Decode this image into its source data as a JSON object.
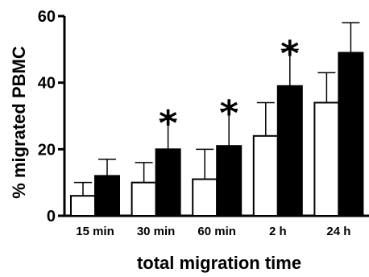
{
  "chart_data": {
    "type": "bar",
    "title": "",
    "xlabel": "total migration time",
    "ylabel": "% migrated PBMC",
    "ylim": [
      0,
      60
    ],
    "yticks": [
      "0",
      "20",
      "40",
      "60"
    ],
    "categories": [
      "15 min",
      "30 min",
      "60 min",
      "2 h",
      "24 h"
    ],
    "series": [
      {
        "fill": "#ffffff",
        "values": [
          6,
          10,
          11,
          24,
          34
        ],
        "errors": [
          4,
          6,
          9,
          10,
          9
        ]
      },
      {
        "fill": "#000000",
        "values": [
          12,
          20,
          21,
          39,
          49
        ],
        "errors": [
          5,
          9,
          11,
          11,
          9
        ]
      }
    ],
    "significance": [
      "",
      "*",
      "*",
      "*",
      ""
    ],
    "grid": false,
    "legend": "none"
  }
}
